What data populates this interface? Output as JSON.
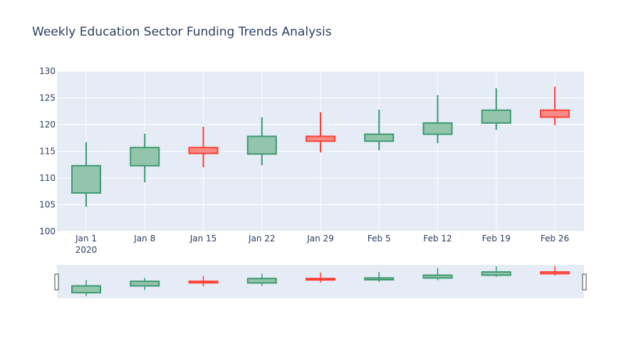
{
  "chart_data": {
    "type": "candlestick",
    "title": "Weekly Education Sector Funding Trends Analysis",
    "xlabel": "",
    "ylabel": "",
    "ylim": [
      100,
      130
    ],
    "yticks": [
      100,
      105,
      110,
      115,
      120,
      125,
      130
    ],
    "x_labels": [
      "Jan 1",
      "Jan 8",
      "Jan 15",
      "Jan 22",
      "Jan 29",
      "Feb 5",
      "Feb 12",
      "Feb 19",
      "Feb 26"
    ],
    "x_year_label": "2020",
    "candles": [
      {
        "date": "2020-01-01",
        "open": 107.2,
        "high": 116.7,
        "low": 104.6,
        "close": 112.3
      },
      {
        "date": "2020-01-08",
        "open": 112.3,
        "high": 118.3,
        "low": 109.2,
        "close": 115.7
      },
      {
        "date": "2020-01-15",
        "open": 115.7,
        "high": 119.6,
        "low": 112.0,
        "close": 114.6
      },
      {
        "date": "2020-01-22",
        "open": 114.5,
        "high": 121.4,
        "low": 112.4,
        "close": 117.8
      },
      {
        "date": "2020-01-29",
        "open": 117.8,
        "high": 122.3,
        "low": 114.8,
        "close": 116.9
      },
      {
        "date": "2020-02-05",
        "open": 116.9,
        "high": 122.8,
        "low": 115.2,
        "close": 118.2
      },
      {
        "date": "2020-02-12",
        "open": 118.2,
        "high": 125.5,
        "low": 116.5,
        "close": 120.3
      },
      {
        "date": "2020-02-19",
        "open": 120.3,
        "high": 126.8,
        "low": 119.0,
        "close": 122.7
      },
      {
        "date": "2020-02-26",
        "open": 122.7,
        "high": 127.1,
        "low": 119.9,
        "close": 121.4
      }
    ],
    "increasing_color": "#3d9970",
    "increasing_fill": "#93c5ad",
    "decreasing_color": "#ff4136",
    "decreasing_fill": "#f68b85",
    "plot_bg": "#e5ecf6",
    "grid_color": "#ffffff",
    "rangeslider": true,
    "grid": true
  }
}
